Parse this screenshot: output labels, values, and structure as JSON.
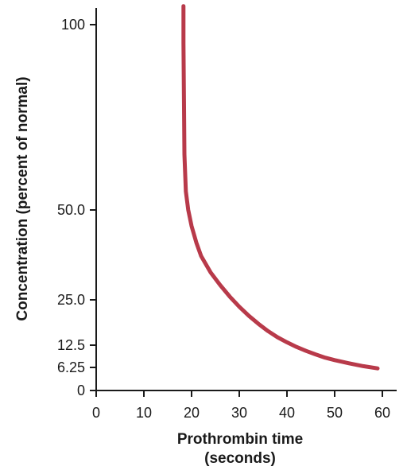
{
  "chart_data": {
    "type": "line",
    "title": "",
    "xlabel": [
      "Prothrombin time",
      "(seconds)"
    ],
    "ylabel": "Concentration (percent of normal)",
    "xlim": [
      0,
      60
    ],
    "x_ticks": [
      "0",
      "10",
      "20",
      "30",
      "40",
      "50",
      "60"
    ],
    "y_ticks": [
      {
        "value": 0,
        "label": "0"
      },
      {
        "value": 6.25,
        "label": "6.25"
      },
      {
        "value": 12.5,
        "label": "12.5"
      },
      {
        "value": 25,
        "label": "25.0"
      },
      {
        "value": 50,
        "label": "50.0"
      },
      {
        "value": 100,
        "label": "100"
      }
    ],
    "y_scale": "nonuniform (tick spacing follows printed labels)",
    "grid": false,
    "series": [
      {
        "color": "#b83a4a",
        "points": [
          [
            18.3,
            105
          ],
          [
            18.3,
            95
          ],
          [
            18.4,
            80
          ],
          [
            18.5,
            65
          ],
          [
            18.8,
            55
          ],
          [
            19.3,
            50
          ],
          [
            20,
            45.5
          ],
          [
            21,
            40.9
          ],
          [
            22,
            37.2
          ],
          [
            24,
            32.6
          ],
          [
            26,
            29.1
          ],
          [
            28,
            25.9
          ],
          [
            30,
            23.1
          ],
          [
            32,
            20.6
          ],
          [
            34,
            18.4
          ],
          [
            36,
            16.4
          ],
          [
            38,
            14.7
          ],
          [
            40,
            13.3
          ],
          [
            42,
            12.0
          ],
          [
            44,
            10.9
          ],
          [
            46,
            9.9
          ],
          [
            48,
            9.0
          ],
          [
            50,
            8.3
          ],
          [
            53,
            7.4
          ],
          [
            56,
            6.6
          ],
          [
            59,
            6.0
          ]
        ]
      }
    ]
  }
}
